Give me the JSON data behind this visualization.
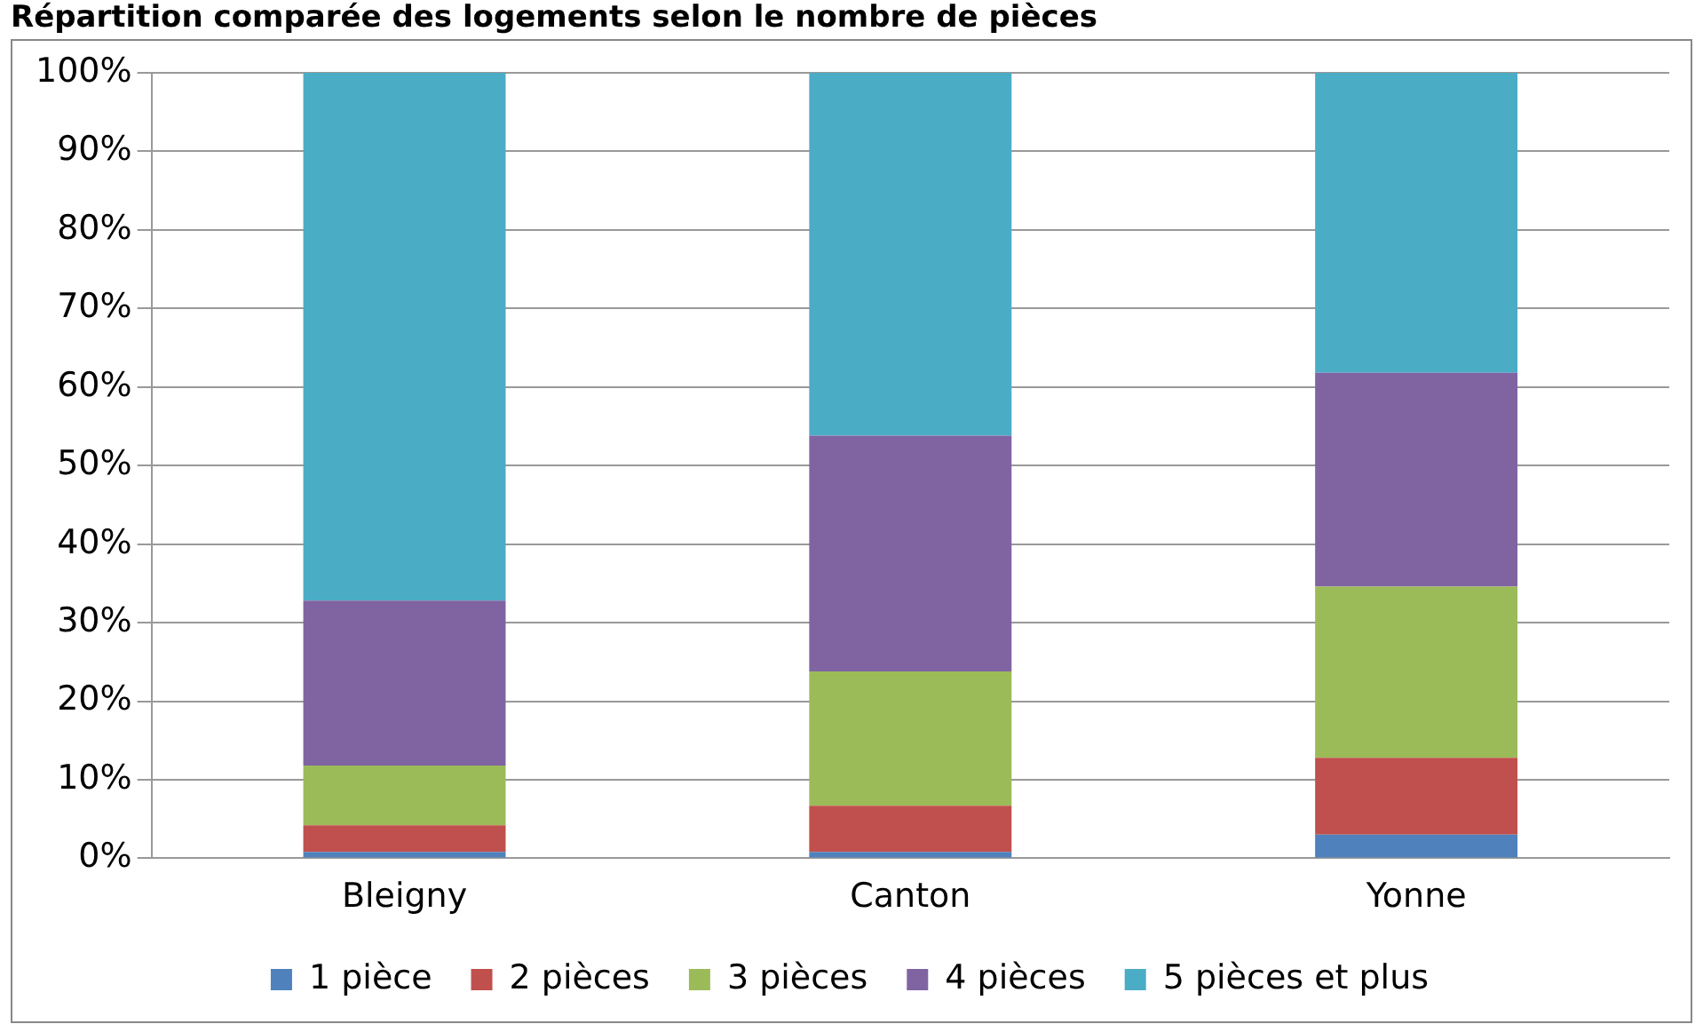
{
  "chart_data": {
    "type": "bar",
    "stacked": true,
    "title": "Répartition comparée des logements selon le nombre de pièces",
    "categories": [
      "Bleigny",
      "Canton",
      "Yonne"
    ],
    "series": [
      {
        "name": "1 pièce",
        "color": "#4f81bd",
        "values": [
          0.8,
          0.8,
          3
        ]
      },
      {
        "name": "2 pièces",
        "color": "#c0504d",
        "values": [
          3.4,
          5.9,
          9.8
        ]
      },
      {
        "name": "3 pièces",
        "color": "#9bbb59",
        "values": [
          7.6,
          17.1,
          21.8
        ]
      },
      {
        "name": "4 pièces",
        "color": "#8064a2",
        "values": [
          21,
          30,
          27.2
        ]
      },
      {
        "name": "5 pièces et plus",
        "color": "#4bacc6",
        "values": [
          67.2,
          46.2,
          38.2
        ]
      }
    ],
    "ylim": [
      0,
      100
    ],
    "yticks": [
      {
        "value": 0,
        "label": "0%"
      },
      {
        "value": 10,
        "label": "10%"
      },
      {
        "value": 20,
        "label": "20%"
      },
      {
        "value": 30,
        "label": "30%"
      },
      {
        "value": 40,
        "label": "40%"
      },
      {
        "value": 50,
        "label": "50%"
      },
      {
        "value": 60,
        "label": "60%"
      },
      {
        "value": 70,
        "label": "70%"
      },
      {
        "value": 80,
        "label": "80%"
      },
      {
        "value": 90,
        "label": "90%"
      },
      {
        "value": 100,
        "label": "100%"
      }
    ],
    "grid": "y",
    "legend": "bottom"
  }
}
